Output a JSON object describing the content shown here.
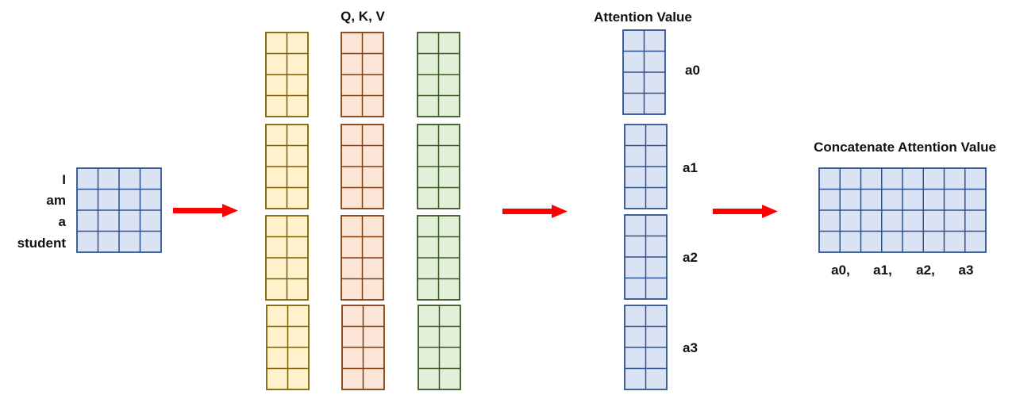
{
  "colors": {
    "input": {
      "fill": "#DAE3F3",
      "stroke": "#2F528F"
    },
    "query": {
      "fill": "#FFF2CC",
      "stroke": "#7F6000"
    },
    "key": {
      "fill": "#FBE5D6",
      "stroke": "#843C0C"
    },
    "value": {
      "fill": "#E2F0D9",
      "stroke": "#385723"
    },
    "attention": {
      "fill": "#DAE3F3",
      "stroke": "#2F528F"
    },
    "arrow": "#FF0000"
  },
  "input": {
    "words": [
      "I",
      "am",
      "a",
      "student"
    ],
    "matrix": {
      "rows": 4,
      "cols": 4
    }
  },
  "qkv": {
    "title": "Q, K, V",
    "heads": 4,
    "matrix": {
      "rows": 4,
      "cols": 2
    },
    "columns": [
      "query",
      "key",
      "value"
    ]
  },
  "attention": {
    "title": "Attention Value",
    "labels": [
      "a0",
      "a1",
      "a2",
      "a3"
    ],
    "matrix": {
      "rows": 4,
      "cols": 2
    }
  },
  "concat": {
    "title": "Concatenate Attention Value",
    "labels": [
      "a0,",
      "a1,",
      "a2,",
      "a3"
    ],
    "matrix": {
      "rows": 4,
      "cols": 8
    }
  }
}
